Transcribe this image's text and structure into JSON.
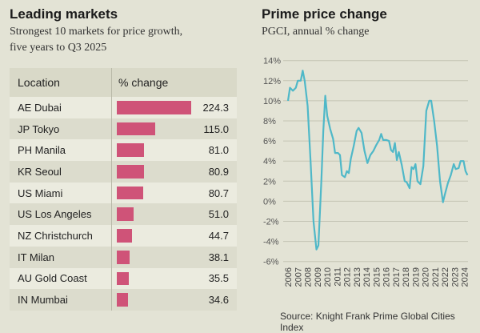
{
  "left": {
    "title": "Leading markets",
    "subtitle_1": "Strongest 10 markets for price growth,",
    "subtitle_2": "five years to Q3 2025",
    "headers": {
      "location": "Location",
      "change": "% change"
    },
    "bar_color": "#cf5378",
    "rows": [
      {
        "location": "AE Dubai",
        "value": 224.3,
        "label": "224.3"
      },
      {
        "location": "JP Tokyo",
        "value": 115.0,
        "label": "115.0"
      },
      {
        "location": "PH Manila",
        "value": 81.0,
        "label": "81.0"
      },
      {
        "location": "KR Seoul",
        "value": 80.9,
        "label": "80.9"
      },
      {
        "location": "US Miami",
        "value": 80.7,
        "label": "80.7"
      },
      {
        "location": "US Los Angeles",
        "value": 51.0,
        "label": "51.0"
      },
      {
        "location": "NZ Christchurch",
        "value": 44.7,
        "label": "44.7"
      },
      {
        "location": "IT Milan",
        "value": 38.1,
        "label": "38.1"
      },
      {
        "location": "AU Gold Coast",
        "value": 35.5,
        "label": "35.5"
      },
      {
        "location": "IN Mumbai",
        "value": 34.6,
        "label": "34.6"
      }
    ]
  },
  "right": {
    "title": "Prime price change",
    "subtitle": "PGCI, annual % change",
    "source": "Source: Knight Frank Prime Global Cities Index"
  },
  "chart_data": {
    "type": "line",
    "title": "Prime price change",
    "subtitle": "PGCI, annual % change",
    "ylim": [
      -6,
      14
    ],
    "yticks": [
      14,
      12,
      10,
      8,
      6,
      4,
      2,
      0,
      -2,
      -4,
      -6
    ],
    "ytick_labels": [
      "14%",
      "12%",
      "10%",
      "8%",
      "6%",
      "4%",
      "2%",
      "0%",
      "-2%",
      "-4%",
      "-6%"
    ],
    "xticks": [
      "2006",
      "2007",
      "2008",
      "2009",
      "2010",
      "2011",
      "2012",
      "2013",
      "2014",
      "2015",
      "2016",
      "2017",
      "2018",
      "2019",
      "2020",
      "2021",
      "2022",
      "2023",
      "2024"
    ],
    "grid": true,
    "line_color": "#4fb8c8",
    "series": [
      {
        "x": [
          2006.0,
          2006.2,
          2006.5,
          2006.8,
          2007.0,
          2007.3,
          2007.5,
          2007.7,
          2008.0,
          2008.3,
          2008.6,
          2008.9,
          2009.1,
          2009.4,
          2009.6,
          2009.8,
          2010.0,
          2010.3,
          2010.6,
          2010.8,
          2011.1,
          2011.3,
          2011.5,
          2011.8,
          2012.0,
          2012.2,
          2012.4,
          2012.7,
          2013.0,
          2013.2,
          2013.5,
          2013.8,
          2014.1,
          2014.4,
          2014.7,
          2015.0,
          2015.3,
          2015.5,
          2015.7,
          2016.0,
          2016.3,
          2016.5,
          2016.7,
          2016.9,
          2017.1,
          2017.3,
          2017.6,
          2017.9,
          2018.1,
          2018.4,
          2018.6,
          2018.8,
          2019.0,
          2019.2,
          2019.5,
          2019.8,
          2020.1,
          2020.4,
          2020.6,
          2020.9,
          2021.2,
          2021.5,
          2021.8,
          2022.0,
          2022.3,
          2022.6,
          2022.9,
          2023.1,
          2023.4,
          2023.6,
          2023.9,
          2024.1,
          2024.3
        ],
        "y": [
          10,
          11.3,
          11,
          11.3,
          12,
          12,
          13,
          12,
          9.5,
          4,
          -2,
          -4.8,
          -4.4,
          2,
          7,
          10.5,
          8.5,
          7.2,
          6.2,
          4.8,
          4.8,
          4.6,
          2.6,
          2.4,
          3,
          2.8,
          4.2,
          5.5,
          7,
          7.3,
          6.8,
          5,
          3.8,
          4.6,
          5,
          5.6,
          6.1,
          6.7,
          6.1,
          6.1,
          6,
          5.1,
          4.9,
          5.8,
          4.1,
          4.9,
          3.6,
          2,
          1.9,
          1.3,
          3.4,
          3.2,
          3.7,
          2,
          1.7,
          3.5,
          9,
          10,
          10,
          8,
          5.5,
          2,
          -0.1,
          0.7,
          1.8,
          2.6,
          3.7,
          3.2,
          3.3,
          4,
          4,
          3,
          2.6
        ]
      }
    ]
  }
}
